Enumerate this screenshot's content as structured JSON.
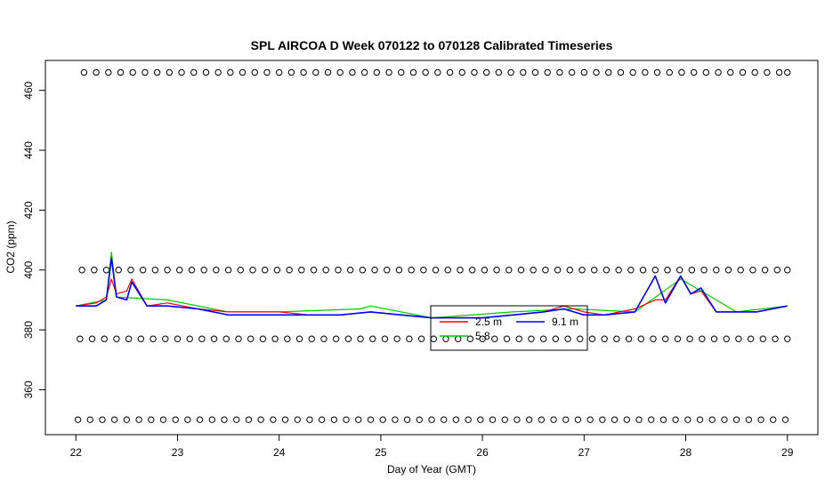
{
  "chart_data": {
    "type": "line",
    "title": "SPL AIRCOA D  Week 070122 to 070128  Calibrated Timeseries",
    "xlabel": "Day of Year (GMT)",
    "ylabel": "CO2 (ppm)",
    "xlim": [
      21.7,
      29.3
    ],
    "ylim": [
      345,
      470
    ],
    "xticks": [
      22,
      23,
      24,
      25,
      26,
      27,
      28,
      29
    ],
    "yticks": [
      360,
      380,
      400,
      420,
      440,
      460
    ],
    "grid": false,
    "legend": {
      "placement": "center",
      "entries": [
        {
          "label": "2.5 m",
          "color": "#ff0000"
        },
        {
          "label": "9.1 m",
          "color": "#0000ff"
        },
        {
          "label": "5.8",
          "color": "#00cc00"
        }
      ]
    },
    "series": [
      {
        "name": "2.5 m",
        "color": "#ff0000",
        "x": [
          22.0,
          22.2,
          22.3,
          22.35,
          22.4,
          22.5,
          22.55,
          22.7,
          22.9,
          23.2,
          23.5,
          23.8,
          24.0,
          24.3,
          24.6,
          24.9,
          25.2,
          25.5,
          25.8,
          26.0,
          26.3,
          26.6,
          26.8,
          27.0,
          27.2,
          27.5,
          27.7,
          27.8,
          27.95,
          28.05,
          28.15,
          28.3,
          28.5,
          28.7,
          29.0
        ],
        "y": [
          388,
          389,
          391,
          397,
          392,
          393,
          397,
          388,
          389,
          387,
          386,
          386,
          386,
          385,
          385,
          386,
          385,
          384,
          384,
          384,
          385,
          386,
          388,
          386,
          385,
          387,
          390,
          390,
          398,
          392,
          393,
          386,
          386,
          386,
          388
        ]
      },
      {
        "name": "9.1 m",
        "color": "#0000ff",
        "x": [
          22.0,
          22.2,
          22.3,
          22.35,
          22.4,
          22.5,
          22.55,
          22.7,
          22.9,
          23.2,
          23.5,
          23.8,
          24.0,
          24.3,
          24.6,
          24.9,
          25.2,
          25.5,
          25.8,
          26.0,
          26.3,
          26.6,
          26.8,
          27.0,
          27.2,
          27.5,
          27.7,
          27.8,
          27.95,
          28.05,
          28.15,
          28.3,
          28.5,
          28.7,
          29.0
        ],
        "y": [
          388,
          388,
          390,
          404,
          391,
          390,
          396,
          388,
          388,
          387,
          385,
          385,
          385,
          385,
          385,
          386,
          385,
          384,
          384,
          384,
          385,
          386,
          387,
          385,
          385,
          386,
          398,
          389,
          398,
          392,
          394,
          386,
          386,
          386,
          388
        ]
      },
      {
        "name": "5.8",
        "color": "#00cc00",
        "x": [
          22.0,
          22.3,
          22.35,
          22.4,
          22.9,
          23.5,
          24.0,
          24.8,
          24.9,
          25.5,
          26.3,
          26.9,
          27.5,
          27.95,
          28.5,
          29.0
        ],
        "y": [
          388,
          390,
          406,
          391,
          390,
          386,
          386,
          387,
          388,
          384,
          386,
          387,
          386,
          397,
          386,
          388
        ]
      }
    ],
    "marker_series": [
      {
        "name": "",
        "marker": "open-circle",
        "y_level": 466,
        "x": [
          22.08,
          22.2,
          22.32,
          22.44,
          22.56,
          22.68,
          22.8,
          22.92,
          23.04,
          23.16,
          23.28,
          23.4,
          23.52,
          23.64,
          23.76,
          23.88,
          24.0,
          24.12,
          24.24,
          24.36,
          24.48,
          24.6,
          24.72,
          24.84,
          24.96,
          25.08,
          25.2,
          25.32,
          25.44,
          25.56,
          25.68,
          25.8,
          25.92,
          26.04,
          26.16,
          26.28,
          26.4,
          26.52,
          26.64,
          26.76,
          26.88,
          27.0,
          27.12,
          27.24,
          27.36,
          27.48,
          27.6,
          27.72,
          27.84,
          27.96,
          28.08,
          28.2,
          28.32,
          28.44,
          28.56,
          28.68,
          28.8,
          28.92,
          29.0
        ]
      },
      {
        "name": "",
        "marker": "open-circle",
        "y_level": 400,
        "x": [
          22.06,
          22.18,
          22.3,
          22.42,
          22.54,
          22.66,
          22.78,
          22.9,
          23.02,
          23.14,
          23.26,
          23.38,
          23.5,
          23.62,
          23.74,
          23.86,
          23.98,
          24.1,
          24.22,
          24.34,
          24.46,
          24.58,
          24.7,
          24.82,
          24.94,
          25.06,
          25.18,
          25.3,
          25.42,
          25.54,
          25.66,
          25.78,
          25.9,
          26.02,
          26.14,
          26.26,
          26.38,
          26.5,
          26.62,
          26.74,
          26.86,
          26.98,
          27.1,
          27.22,
          27.34,
          27.46,
          27.58,
          27.7,
          27.82,
          27.94,
          28.06,
          28.18,
          28.3,
          28.42,
          28.54,
          28.66,
          28.78,
          28.9,
          29.0
        ]
      },
      {
        "name": "",
        "marker": "open-circle",
        "y_level": 377,
        "x": [
          22.04,
          22.16,
          22.28,
          22.4,
          22.52,
          22.64,
          22.76,
          22.88,
          23.0,
          23.12,
          23.24,
          23.36,
          23.48,
          23.6,
          23.72,
          23.84,
          23.96,
          24.08,
          24.2,
          24.32,
          24.44,
          24.56,
          24.68,
          24.8,
          24.92,
          25.04,
          25.16,
          25.28,
          25.4,
          25.52,
          25.64,
          25.76,
          25.88,
          26.0,
          26.12,
          26.24,
          26.36,
          26.48,
          26.6,
          26.72,
          26.84,
          26.96,
          27.08,
          27.2,
          27.32,
          27.44,
          27.56,
          27.68,
          27.8,
          27.92,
          28.04,
          28.16,
          28.28,
          28.4,
          28.52,
          28.64,
          28.76,
          28.88,
          29.0
        ]
      },
      {
        "name": "",
        "marker": "open-circle",
        "y_level": 350,
        "x": [
          22.02,
          22.14,
          22.26,
          22.38,
          22.5,
          22.62,
          22.74,
          22.86,
          22.98,
          23.1,
          23.22,
          23.34,
          23.46,
          23.58,
          23.7,
          23.82,
          23.94,
          24.06,
          24.18,
          24.3,
          24.42,
          24.54,
          24.66,
          24.78,
          24.9,
          25.02,
          25.14,
          25.26,
          25.38,
          25.5,
          25.62,
          25.74,
          25.86,
          25.98,
          26.1,
          26.22,
          26.34,
          26.46,
          26.58,
          26.7,
          26.82,
          26.94,
          27.06,
          27.18,
          27.3,
          27.42,
          27.54,
          27.66,
          27.78,
          27.9,
          28.02,
          28.14,
          28.26,
          28.38,
          28.5,
          28.62,
          28.74,
          28.86,
          28.98
        ]
      }
    ]
  }
}
